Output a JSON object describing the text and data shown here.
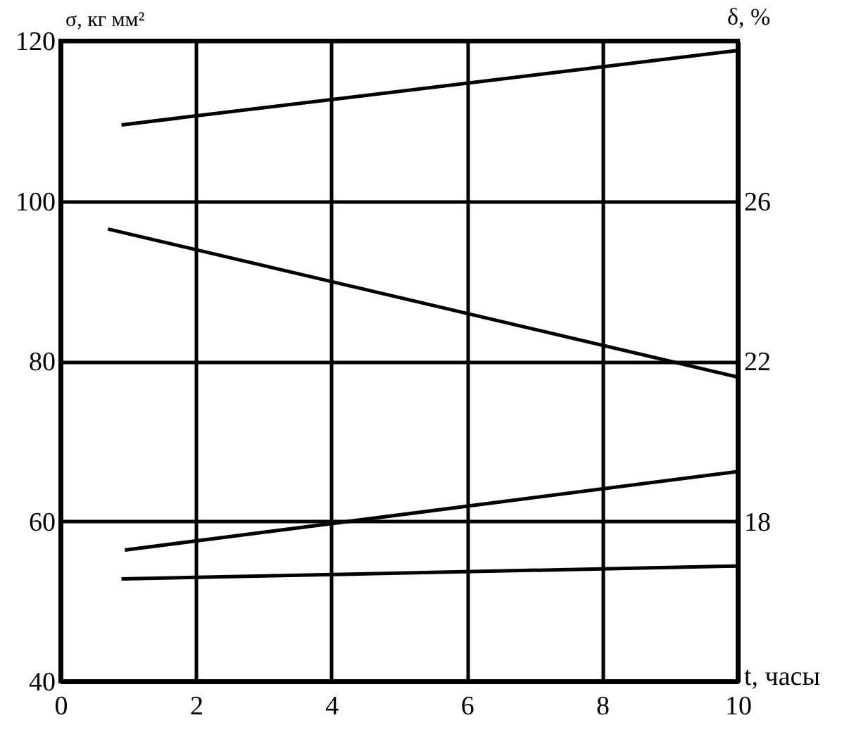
{
  "chart_data": {
    "type": "line",
    "xlabel": "t, часы",
    "ylabel": "σ, кг мм²",
    "y2label": "δ, %",
    "xlim": [
      0,
      10
    ],
    "xticks": [
      0,
      2,
      4,
      6,
      8,
      10
    ],
    "ylim": [
      40,
      120
    ],
    "yticks": [
      40,
      60,
      80,
      100,
      120
    ],
    "y2lim": [
      14,
      30
    ],
    "y2ticks": [
      18,
      22,
      26
    ],
    "grid": true,
    "series": [
      {
        "color": "#000000",
        "x": [
          0.9,
          10
        ],
        "values": [
          109.5,
          118.8
        ]
      },
      {
        "color": "#000000",
        "x": [
          0.7,
          10
        ],
        "values": [
          25.3,
          21.6
        ],
        "axis": "y2"
      },
      {
        "color": "#000000",
        "x": [
          0.95,
          10
        ],
        "values": [
          56.4,
          66.2
        ]
      },
      {
        "color": "#000000",
        "x": [
          0.9,
          10
        ],
        "values": [
          52.8,
          54.4
        ]
      }
    ]
  }
}
